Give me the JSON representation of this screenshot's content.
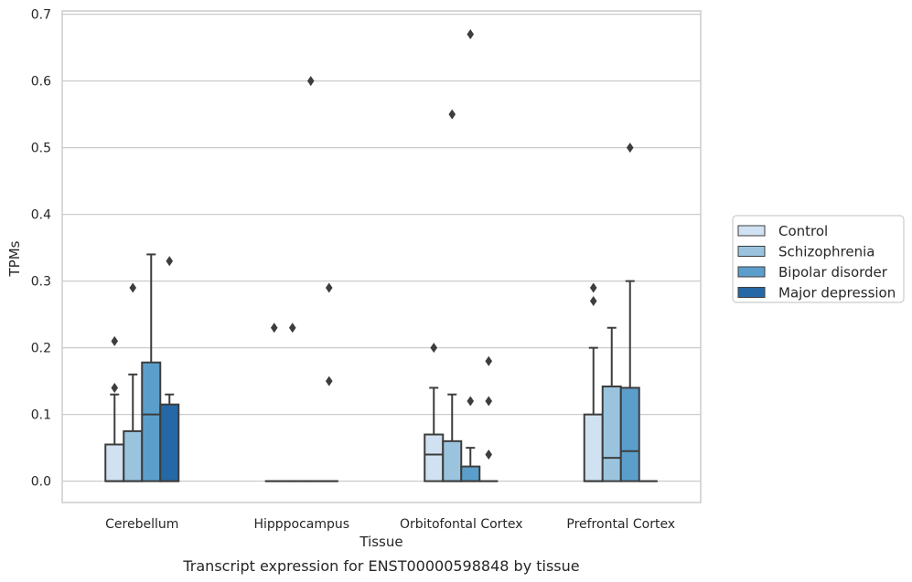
{
  "caption": "Transcript expression for ENST00000598848 by tissue",
  "chart_data": {
    "type": "box",
    "xlabel": "Tissue",
    "ylabel": "TPMs",
    "ylim": [
      -0.032,
      0.705
    ],
    "yticks": [
      0.0,
      0.1,
      0.2,
      0.3,
      0.4,
      0.5,
      0.6,
      0.7
    ],
    "ytick_labels": [
      "0.0",
      "0.1",
      "0.2",
      "0.3",
      "0.4",
      "0.5",
      "0.6",
      "0.7"
    ],
    "grid": "horizontal",
    "legend_position": "right",
    "categories": [
      "Cerebellum",
      "Hipppocampus",
      "Orbitofontal Cortex",
      "Prefrontal Cortex"
    ],
    "series": [
      {
        "name": "Control",
        "color": "#d0e1f2",
        "boxes": [
          {
            "q1": 0.0,
            "median": 0.0,
            "q3": 0.055,
            "whislo": 0.0,
            "whishi": 0.13,
            "fliers": [
              0.14,
              0.21
            ]
          },
          {
            "q1": 0.0,
            "median": 0.0,
            "q3": 0.0,
            "whislo": 0.0,
            "whishi": 0.0,
            "fliers": [
              0.23
            ]
          },
          {
            "q1": 0.0,
            "median": 0.04,
            "q3": 0.07,
            "whislo": 0.0,
            "whishi": 0.14,
            "fliers": [
              0.2
            ]
          },
          {
            "q1": 0.0,
            "median": 0.0,
            "q3": 0.1,
            "whislo": 0.0,
            "whishi": 0.2,
            "fliers": [
              0.27,
              0.29
            ]
          }
        ]
      },
      {
        "name": "Schizophrenia",
        "color": "#9ac4de",
        "boxes": [
          {
            "q1": 0.0,
            "median": 0.0,
            "q3": 0.075,
            "whislo": 0.0,
            "whishi": 0.16,
            "fliers": [
              0.29
            ]
          },
          {
            "q1": 0.0,
            "median": 0.0,
            "q3": 0.0,
            "whislo": 0.0,
            "whishi": 0.0,
            "fliers": [
              0.23
            ]
          },
          {
            "q1": 0.0,
            "median": 0.0,
            "q3": 0.06,
            "whislo": 0.0,
            "whishi": 0.13,
            "fliers": [
              0.55
            ]
          },
          {
            "q1": 0.0,
            "median": 0.035,
            "q3": 0.142,
            "whislo": 0.0,
            "whishi": 0.23,
            "fliers": []
          }
        ]
      },
      {
        "name": "Bipolar disorder",
        "color": "#5b9ecb",
        "boxes": [
          {
            "q1": 0.0,
            "median": 0.1,
            "q3": 0.178,
            "whislo": 0.0,
            "whishi": 0.34,
            "fliers": []
          },
          {
            "q1": 0.0,
            "median": 0.0,
            "q3": 0.0,
            "whislo": 0.0,
            "whishi": 0.0,
            "fliers": [
              0.6
            ]
          },
          {
            "q1": 0.0,
            "median": 0.0,
            "q3": 0.022,
            "whislo": 0.0,
            "whishi": 0.05,
            "fliers": [
              0.12,
              0.67
            ]
          },
          {
            "q1": 0.0,
            "median": 0.045,
            "q3": 0.14,
            "whislo": 0.0,
            "whishi": 0.3,
            "fliers": [
              0.5
            ]
          }
        ]
      },
      {
        "name": "Major depression",
        "color": "#2568a6",
        "boxes": [
          {
            "q1": 0.0,
            "median": 0.0,
            "q3": 0.115,
            "whislo": 0.0,
            "whishi": 0.13,
            "fliers": [
              0.33
            ]
          },
          {
            "q1": 0.0,
            "median": 0.0,
            "q3": 0.0,
            "whislo": 0.0,
            "whishi": 0.0,
            "fliers": [
              0.15,
              0.29
            ]
          },
          {
            "q1": 0.0,
            "median": 0.0,
            "q3": 0.0,
            "whislo": 0.0,
            "whishi": 0.0,
            "fliers": [
              0.04,
              0.12,
              0.18
            ]
          },
          {
            "q1": 0.0,
            "median": 0.0,
            "q3": 0.0,
            "whislo": 0.0,
            "whishi": 0.0,
            "fliers": []
          }
        ]
      }
    ]
  }
}
